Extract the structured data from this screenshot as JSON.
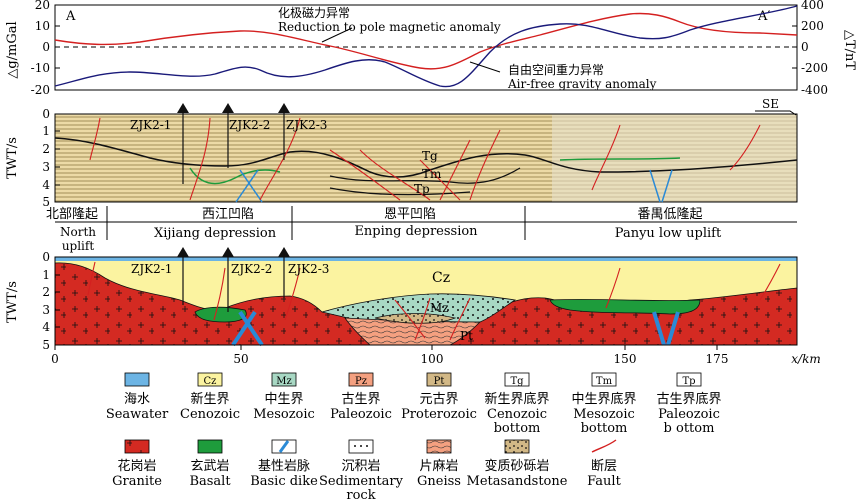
{
  "top_panel": {
    "label_left": "A",
    "label_right": "A′",
    "left_axis_title": "△g/mGal",
    "right_axis_title": "△T/nT",
    "left_ticks": [
      "20",
      "10",
      "0",
      "-10",
      "-20"
    ],
    "right_ticks": [
      "400",
      "200",
      "0",
      "-200",
      "-400"
    ],
    "mag_label_cn": "化极磁力异常",
    "mag_label_en": "Reduction to pole magnetic anomaly",
    "grav_label_cn": "自由空间重力异常",
    "grav_label_en": "Air-free gravity anomaly",
    "mag_color": "#d42020",
    "grav_color": "#1a1a7a"
  },
  "seismic_panel": {
    "y_axis_title": "TWT/s",
    "y_ticks": [
      "0",
      "1",
      "2",
      "3",
      "4",
      "5"
    ],
    "direction": "SE",
    "wells": [
      "ZJK2-1",
      "ZJK2-2",
      "ZJK2-3"
    ],
    "horizons": [
      "Tg",
      "Tm",
      "Tp"
    ]
  },
  "structural_units": [
    {
      "cn": "北部隆起",
      "en1": "North",
      "en2": "uplift"
    },
    {
      "cn": "西江凹陷",
      "en1": "Xijiang depression",
      "en2": ""
    },
    {
      "cn": "恩平凹陷",
      "en1": "Enping depression",
      "en2": ""
    },
    {
      "cn": "番禺低隆起",
      "en1": "Panyu low uplift",
      "en2": ""
    }
  ],
  "geo_panel": {
    "y_axis_title": "TWT/s",
    "y_ticks": [
      "0",
      "1",
      "2",
      "3",
      "4",
      "5"
    ],
    "x_ticks": [
      "0",
      "50",
      "100",
      "150",
      "175"
    ],
    "x_axis_title": "x/km",
    "wells": [
      "ZJK2-1",
      "ZJK2-2",
      "ZJK2-3"
    ],
    "labels": [
      "Cz",
      "Mz",
      "Pt"
    ]
  },
  "legend": [
    {
      "key": "seawater",
      "swatch": "",
      "cn": "海水",
      "en1": "Seawater",
      "en2": ""
    },
    {
      "key": "cenozoic",
      "swatch": "Cz",
      "cn": "新生界",
      "en1": "Cenozoic",
      "en2": ""
    },
    {
      "key": "mesozoic",
      "swatch": "Mz",
      "cn": "中生界",
      "en1": "Mesozoic",
      "en2": ""
    },
    {
      "key": "paleozoic",
      "swatch": "Pz",
      "cn": "古生界",
      "en1": "Paleozoic",
      "en2": ""
    },
    {
      "key": "proterozoic",
      "swatch": "Pt",
      "cn": "元古界",
      "en1": "Proterozoic",
      "en2": ""
    },
    {
      "key": "tg",
      "swatch": "Tg",
      "cn": "新生界底界",
      "en1": "Cenozoic",
      "en2": "bottom"
    },
    {
      "key": "tm",
      "swatch": "Tm",
      "cn": "中生界底界",
      "en1": "Mesozoic",
      "en2": "bottom"
    },
    {
      "key": "tp",
      "swatch": "Tp",
      "cn": "古生界底界",
      "en1": "Paleozoic",
      "en2": "b ottom"
    },
    {
      "key": "granite",
      "swatch": "",
      "cn": "花岗岩",
      "en1": "Granite",
      "en2": ""
    },
    {
      "key": "basalt",
      "swatch": "",
      "cn": "玄武岩",
      "en1": "Basalt",
      "en2": ""
    },
    {
      "key": "dike",
      "swatch": "",
      "cn": "基性岩脉",
      "en1": "Basic dike",
      "en2": ""
    },
    {
      "key": "sedimentary",
      "swatch": "",
      "cn": "沉积岩",
      "en1": "Sedimentary",
      "en2": "rock"
    },
    {
      "key": "gneiss",
      "swatch": "",
      "cn": "片麻岩",
      "en1": "Gneiss",
      "en2": ""
    },
    {
      "key": "metasandstone",
      "swatch": "",
      "cn": "变质砂砾岩",
      "en1": "Metasandstone",
      "en2": ""
    },
    {
      "key": "fault",
      "swatch": "",
      "cn": "断层",
      "en1": "Fault",
      "en2": ""
    }
  ],
  "colors": {
    "seawater": "#6cb4e4",
    "cenozoic": "#fbf3a0",
    "mesozoic": "#a8d8c4",
    "paleozoic": "#f4a080",
    "proterozoic": "#d2b886",
    "granite": "#d42a22",
    "basalt": "#1e9c3c",
    "dike": "#2a8ad6",
    "fault": "#d42020"
  }
}
